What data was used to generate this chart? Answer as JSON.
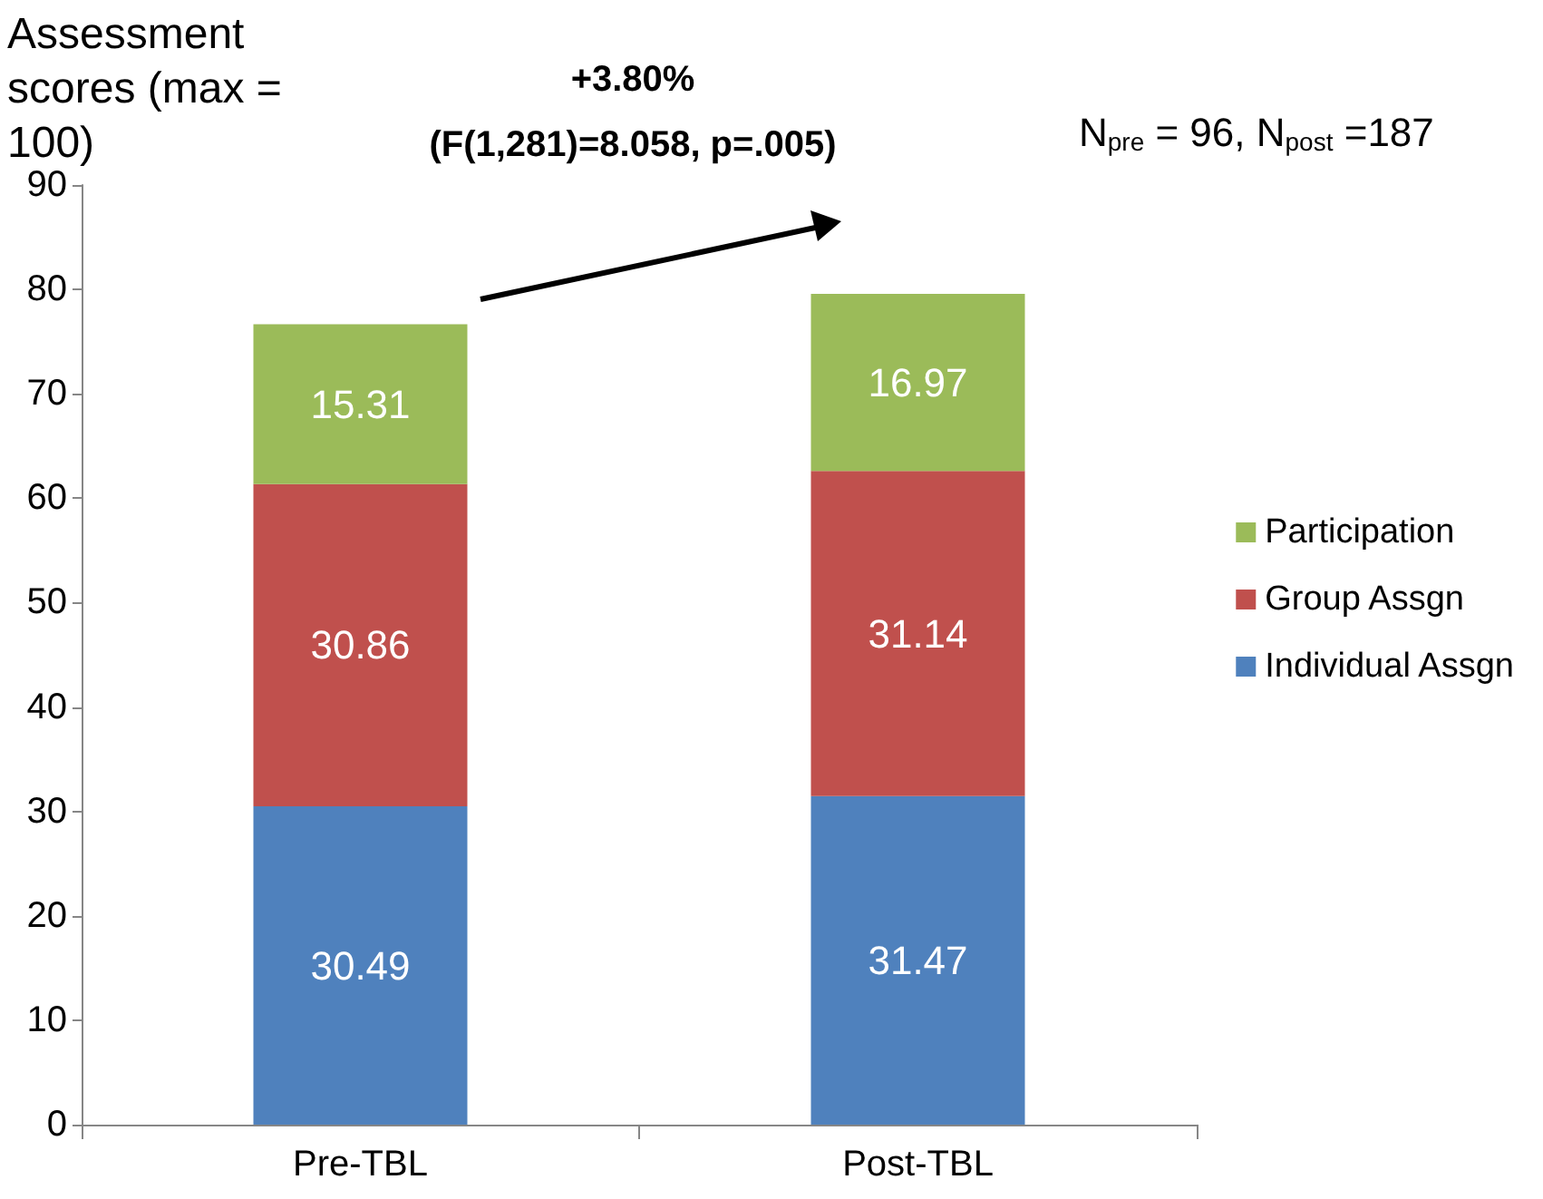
{
  "chart_data": {
    "type": "bar",
    "stacked": true,
    "ylabel": "Assessment scores (max = 100)",
    "categories": [
      "Pre-TBL",
      "Post-TBL"
    ],
    "series": [
      {
        "name": "Individual Assgn",
        "color": "#4f81bd",
        "values": [
          30.49,
          31.47
        ]
      },
      {
        "name": "Group Assgn",
        "color": "#c0504d",
        "values": [
          30.86,
          31.14
        ]
      },
      {
        "name": "Participation",
        "color": "#9bbb59",
        "values": [
          15.31,
          16.97
        ]
      }
    ],
    "ylim": [
      0,
      90
    ],
    "yticks": [
      0,
      10,
      20,
      30,
      40,
      50,
      60,
      70,
      80,
      90
    ],
    "grid": false,
    "legend": "right",
    "data_labels": true,
    "annotations": [
      "+3.80%",
      "(F(1,281)=8.058, p=.005)",
      "N$_{pre}$ = 96, N$_{post}$ =187"
    ]
  }
}
